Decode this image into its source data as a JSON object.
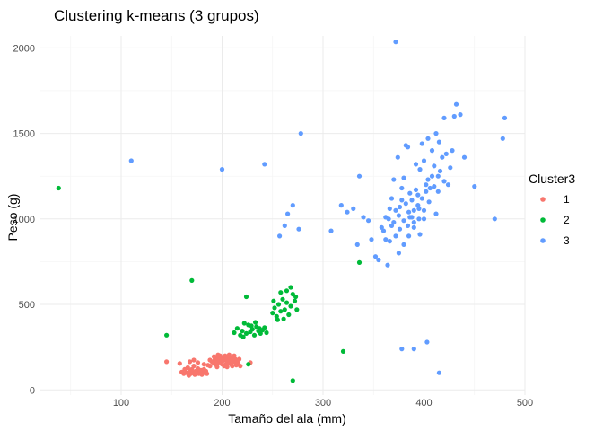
{
  "chart_data": {
    "type": "scatter",
    "title": "Clustering k-means (3 grupos)",
    "xlabel": "Tamaño del ala (mm)",
    "ylabel": "Peso (g)",
    "xlim": [
      20,
      500
    ],
    "ylim": [
      -30,
      2070
    ],
    "xticks": [
      100,
      200,
      300,
      400,
      500
    ],
    "yticks": [
      0,
      500,
      1000,
      1500,
      2000
    ],
    "grid": true,
    "legend": {
      "title": "Cluster3",
      "position": "right"
    },
    "series": [
      {
        "name": "1",
        "color": "#F8766D",
        "points": [
          [
            145,
            165
          ],
          [
            158,
            155
          ],
          [
            160,
            105
          ],
          [
            162,
            95
          ],
          [
            163,
            120
          ],
          [
            165,
            100
          ],
          [
            166,
            130
          ],
          [
            167,
            85
          ],
          [
            168,
            110
          ],
          [
            169,
            95
          ],
          [
            170,
            120
          ],
          [
            171,
            100
          ],
          [
            172,
            140
          ],
          [
            173,
            90
          ],
          [
            174,
            110
          ],
          [
            175,
            105
          ],
          [
            176,
            125
          ],
          [
            177,
            95
          ],
          [
            178,
            100
          ],
          [
            179,
            115
          ],
          [
            180,
            90
          ],
          [
            181,
            105
          ],
          [
            182,
            120
          ],
          [
            183,
            100
          ],
          [
            184,
            110
          ],
          [
            185,
            95
          ],
          [
            168,
            165
          ],
          [
            172,
            175
          ],
          [
            176,
            160
          ],
          [
            182,
            150
          ],
          [
            186,
            145
          ],
          [
            188,
            140
          ],
          [
            190,
            165
          ],
          [
            192,
            155
          ],
          [
            193,
            180
          ],
          [
            194,
            170
          ],
          [
            195,
            190
          ],
          [
            196,
            160
          ],
          [
            197,
            175
          ],
          [
            198,
            200
          ],
          [
            199,
            185
          ],
          [
            200,
            165
          ],
          [
            201,
            190
          ],
          [
            202,
            175
          ],
          [
            203,
            200
          ],
          [
            204,
            180
          ],
          [
            205,
            160
          ],
          [
            206,
            195
          ],
          [
            207,
            170
          ],
          [
            208,
            185
          ],
          [
            209,
            150
          ],
          [
            210,
            175
          ],
          [
            211,
            190
          ],
          [
            212,
            165
          ],
          [
            213,
            180
          ],
          [
            214,
            145
          ],
          [
            215,
            170
          ],
          [
            216,
            155
          ],
          [
            217,
            180
          ],
          [
            218,
            140
          ],
          [
            200,
            150
          ],
          [
            202,
            140
          ],
          [
            195,
            135
          ],
          [
            205,
            135
          ],
          [
            210,
            140
          ],
          [
            188,
            175
          ],
          [
            192,
            195
          ],
          [
            207,
            205
          ],
          [
            212,
            200
          ],
          [
            196,
            205
          ],
          [
            194,
            148
          ],
          [
            200,
            178
          ],
          [
            206,
            162
          ],
          [
            214,
            162
          ],
          [
            204,
            150
          ],
          [
            228,
            160
          ]
        ]
      },
      {
        "name": "2",
        "color": "#00BA38",
        "points": [
          [
            38,
            1180
          ],
          [
            145,
            320
          ],
          [
            170,
            640
          ],
          [
            224,
            545
          ],
          [
            226,
            150
          ],
          [
            270,
            55
          ],
          [
            320,
            225
          ],
          [
            336,
            745
          ],
          [
            212,
            335
          ],
          [
            215,
            360
          ],
          [
            218,
            320
          ],
          [
            220,
            345
          ],
          [
            222,
            390
          ],
          [
            224,
            330
          ],
          [
            226,
            380
          ],
          [
            228,
            340
          ],
          [
            230,
            355
          ],
          [
            232,
            320
          ],
          [
            234,
            370
          ],
          [
            236,
            345
          ],
          [
            238,
            330
          ],
          [
            240,
            350
          ],
          [
            242,
            365
          ],
          [
            244,
            335
          ],
          [
            221,
            310
          ],
          [
            229,
            375
          ],
          [
            237,
            360
          ],
          [
            233,
            395
          ],
          [
            250,
            450
          ],
          [
            252,
            480
          ],
          [
            254,
            430
          ],
          [
            256,
            500
          ],
          [
            258,
            460
          ],
          [
            260,
            530
          ],
          [
            262,
            470
          ],
          [
            264,
            510
          ],
          [
            266,
            440
          ],
          [
            268,
            490
          ],
          [
            270,
            560
          ],
          [
            272,
            520
          ],
          [
            274,
            470
          ],
          [
            264,
            580
          ],
          [
            268,
            600
          ],
          [
            258,
            570
          ],
          [
            261,
            415
          ],
          [
            255,
            410
          ],
          [
            273,
            545
          ],
          [
            251,
            520
          ]
        ]
      },
      {
        "name": "3",
        "color": "#619CFF",
        "points": [
          [
            110,
            1340
          ],
          [
            200,
            1290
          ],
          [
            242,
            1320
          ],
          [
            257,
            900
          ],
          [
            262,
            960
          ],
          [
            265,
            1030
          ],
          [
            270,
            1080
          ],
          [
            278,
            1500
          ],
          [
            276,
            940
          ],
          [
            308,
            930
          ],
          [
            318,
            1080
          ],
          [
            324,
            1040
          ],
          [
            330,
            1060
          ],
          [
            334,
            850
          ],
          [
            336,
            1250
          ],
          [
            340,
            1010
          ],
          [
            345,
            990
          ],
          [
            348,
            880
          ],
          [
            352,
            780
          ],
          [
            355,
            760
          ],
          [
            358,
            950
          ],
          [
            360,
            930
          ],
          [
            362,
            1010
          ],
          [
            364,
            730
          ],
          [
            366,
            870
          ],
          [
            368,
            1120
          ],
          [
            370,
            1230
          ],
          [
            372,
            2035
          ],
          [
            374,
            1360
          ],
          [
            376,
            1070
          ],
          [
            378,
            1180
          ],
          [
            380,
            1240
          ],
          [
            382,
            1430
          ],
          [
            384,
            1420
          ],
          [
            386,
            1010
          ],
          [
            388,
            1110
          ],
          [
            390,
            1050
          ],
          [
            392,
            1320
          ],
          [
            394,
            1080
          ],
          [
            396,
            1290
          ],
          [
            398,
            1440
          ],
          [
            400,
            1340
          ],
          [
            402,
            1200
          ],
          [
            404,
            1470
          ],
          [
            406,
            1180
          ],
          [
            408,
            1400
          ],
          [
            410,
            1310
          ],
          [
            412,
            1500
          ],
          [
            414,
            1250
          ],
          [
            416,
            1280
          ],
          [
            418,
            1360
          ],
          [
            420,
            1220
          ],
          [
            422,
            1380
          ],
          [
            424,
            1200
          ],
          [
            426,
            1300
          ],
          [
            428,
            1400
          ],
          [
            432,
            1670
          ],
          [
            436,
            1610
          ],
          [
            440,
            1360
          ],
          [
            450,
            1190
          ],
          [
            470,
            1000
          ],
          [
            478,
            1470
          ],
          [
            480,
            1590
          ],
          [
            415,
            1450
          ],
          [
            420,
            1590
          ],
          [
            430,
            1600
          ],
          [
            375,
            800
          ],
          [
            380,
            850
          ],
          [
            385,
            900
          ],
          [
            390,
            950
          ],
          [
            395,
            1000
          ],
          [
            400,
            1050
          ],
          [
            405,
            1100
          ],
          [
            370,
            980
          ],
          [
            375,
            1020
          ],
          [
            380,
            990
          ],
          [
            385,
            1040
          ],
          [
            390,
            980
          ],
          [
            395,
            1060
          ],
          [
            400,
            1000
          ],
          [
            365,
            1000
          ],
          [
            368,
            960
          ],
          [
            372,
            1050
          ],
          [
            376,
            940
          ],
          [
            382,
            1090
          ],
          [
            386,
            1150
          ],
          [
            392,
            1170
          ],
          [
            398,
            1120
          ],
          [
            404,
            1230
          ],
          [
            410,
            1190
          ],
          [
            366,
            1060
          ],
          [
            378,
            1110
          ],
          [
            384,
            960
          ],
          [
            388,
            1010
          ],
          [
            394,
            1140
          ],
          [
            402,
            1160
          ],
          [
            408,
            1250
          ],
          [
            414,
            1160
          ],
          [
            412,
            1030
          ],
          [
            396,
            910
          ],
          [
            372,
            900
          ],
          [
            362,
            880
          ],
          [
            378,
            240
          ],
          [
            390,
            240
          ],
          [
            403,
            280
          ],
          [
            415,
            100
          ]
        ]
      }
    ]
  }
}
